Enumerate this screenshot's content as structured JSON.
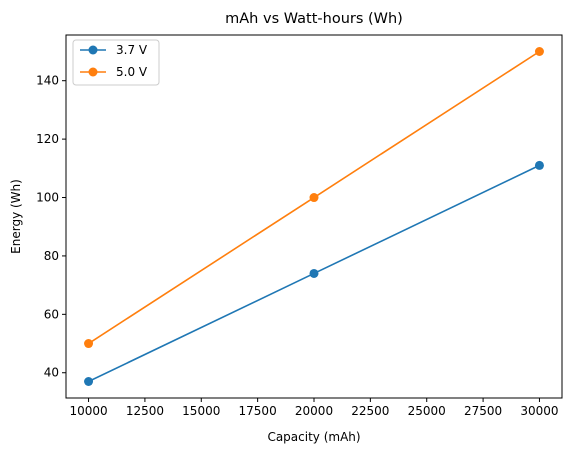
{
  "chart_data": {
    "type": "line",
    "title": "mAh vs Watt-hours (Wh)",
    "xlabel": "Capacity (mAh)",
    "ylabel": "Energy (Wh)",
    "x": [
      10000,
      20000,
      30000
    ],
    "xlim": [
      9000,
      31000
    ],
    "ylim": [
      31.35,
      155.65
    ],
    "xticks": [
      10000,
      12500,
      15000,
      17500,
      20000,
      22500,
      25000,
      27500,
      30000
    ],
    "yticks": [
      40,
      60,
      80,
      100,
      120,
      140
    ],
    "grid": false,
    "legend_position": "top-left",
    "series": [
      {
        "name": "3.7 V",
        "color": "#1f77b4",
        "marker": "circle",
        "values": [
          37,
          74,
          111
        ]
      },
      {
        "name": "5.0 V",
        "color": "#ff7f0e",
        "marker": "circle",
        "values": [
          50,
          100,
          150
        ]
      }
    ]
  }
}
